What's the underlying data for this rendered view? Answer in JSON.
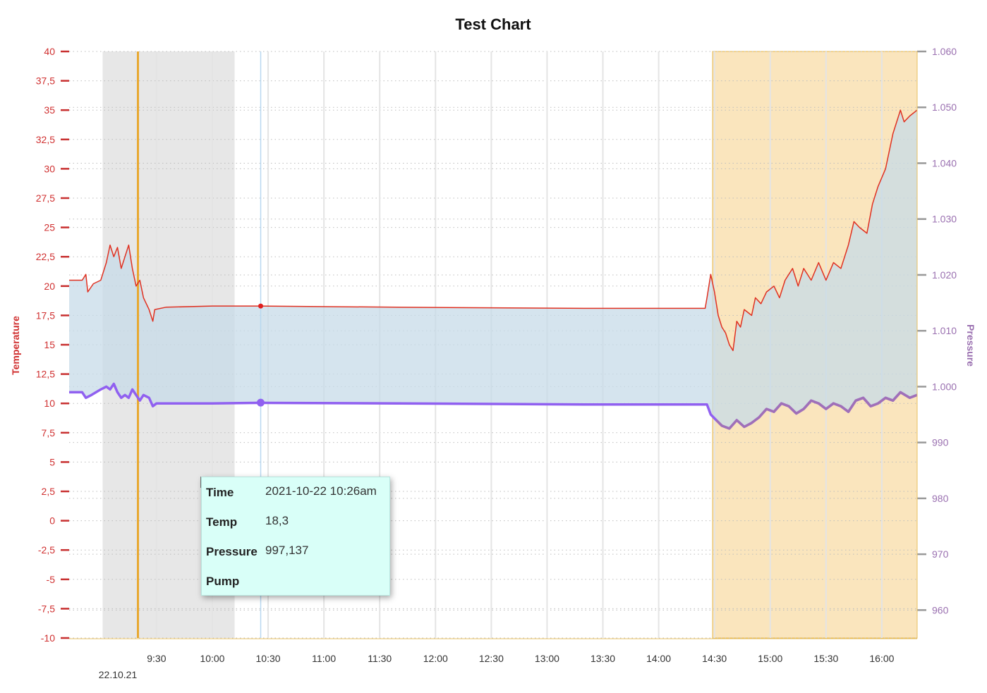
{
  "chart_data": {
    "type": "line",
    "title": "Test Chart",
    "left_axis": {
      "label": "Temperature",
      "color": "#d03030",
      "min": -10,
      "max": 40,
      "ticks": [
        "40",
        "37,5",
        "35",
        "32,5",
        "30",
        "27,5",
        "25",
        "22,5",
        "20",
        "17,5",
        "15",
        "12,5",
        "10",
        "7,5",
        "5",
        "2,5",
        "0",
        "-2,5",
        "-5",
        "-7,5",
        "-10"
      ]
    },
    "right_axis": {
      "label": "Pressure",
      "color": "#9a70b0",
      "min": 955,
      "max": 1060,
      "ticks": [
        "1.060",
        "1.050",
        "1.040",
        "1.030",
        "1.020",
        "1.010",
        "1.000",
        "990",
        "980",
        "970",
        "960"
      ]
    },
    "x_axis": {
      "ticks": [
        "9:30",
        "10:00",
        "10:30",
        "11:00",
        "11:30",
        "12:00",
        "12:30",
        "13:00",
        "13:30",
        "14:00",
        "14:30",
        "15:00",
        "15:30",
        "16:00"
      ],
      "date_label": "22.10.21"
    },
    "bands": [
      {
        "name": "grey-band",
        "from_min": 541,
        "to_min": 612,
        "color": "#d4d4d4"
      },
      {
        "name": "orange-band",
        "from_min": 869,
        "to_min": 979,
        "color": "#f5cf86"
      }
    ],
    "series": [
      {
        "name": "Temp",
        "axis": "left",
        "color": "#e03020",
        "points": [
          [
            523,
            20.5
          ],
          [
            530,
            20.5
          ],
          [
            532,
            21
          ],
          [
            533,
            19.5
          ],
          [
            536,
            20.2
          ],
          [
            540,
            20.5
          ],
          [
            543,
            22
          ],
          [
            545,
            23.5
          ],
          [
            547,
            22.5
          ],
          [
            549,
            23.3
          ],
          [
            551,
            21.5
          ],
          [
            553,
            22.5
          ],
          [
            555,
            23.5
          ],
          [
            557,
            21.5
          ],
          [
            559,
            20
          ],
          [
            561,
            20.5
          ],
          [
            563,
            19
          ],
          [
            566,
            18
          ],
          [
            568,
            17
          ],
          [
            569,
            18
          ],
          [
            575,
            18.2
          ],
          [
            600,
            18.3
          ],
          [
            626,
            18.3
          ],
          [
            700,
            18.2
          ],
          [
            800,
            18.1
          ],
          [
            865,
            18.1
          ],
          [
            866,
            19
          ],
          [
            868,
            21
          ],
          [
            870,
            19.5
          ],
          [
            872,
            17.5
          ],
          [
            874,
            16.5
          ],
          [
            876,
            16
          ],
          [
            878,
            15
          ],
          [
            880,
            14.5
          ],
          [
            882,
            17
          ],
          [
            884,
            16.5
          ],
          [
            886,
            18
          ],
          [
            890,
            17.5
          ],
          [
            892,
            19
          ],
          [
            895,
            18.5
          ],
          [
            898,
            19.5
          ],
          [
            902,
            20
          ],
          [
            905,
            19
          ],
          [
            908,
            20.5
          ],
          [
            912,
            21.5
          ],
          [
            915,
            20
          ],
          [
            918,
            21.5
          ],
          [
            922,
            20.5
          ],
          [
            926,
            22
          ],
          [
            930,
            20.5
          ],
          [
            934,
            22
          ],
          [
            938,
            21.5
          ],
          [
            942,
            23.5
          ],
          [
            945,
            25.5
          ],
          [
            948,
            25
          ],
          [
            952,
            24.5
          ],
          [
            955,
            27
          ],
          [
            958,
            28.5
          ],
          [
            962,
            30
          ],
          [
            966,
            33
          ],
          [
            970,
            35
          ],
          [
            972,
            34
          ],
          [
            975,
            34.5
          ],
          [
            979,
            35
          ]
        ]
      },
      {
        "name": "Pressure",
        "axis": "right",
        "color": "#9060f0",
        "points": [
          [
            523,
            999
          ],
          [
            530,
            999
          ],
          [
            532,
            998
          ],
          [
            535,
            998.5
          ],
          [
            540,
            999.5
          ],
          [
            543,
            1000
          ],
          [
            545,
            999.5
          ],
          [
            547,
            1000.5
          ],
          [
            549,
            999
          ],
          [
            551,
            998
          ],
          [
            553,
            998.5
          ],
          [
            555,
            998
          ],
          [
            557,
            999.5
          ],
          [
            559,
            998.5
          ],
          [
            561,
            997.5
          ],
          [
            563,
            998.5
          ],
          [
            566,
            998
          ],
          [
            568,
            996.5
          ],
          [
            570,
            997
          ],
          [
            600,
            997
          ],
          [
            626,
            997.1
          ],
          [
            700,
            997
          ],
          [
            800,
            996.8
          ],
          [
            866,
            996.8
          ],
          [
            868,
            995
          ],
          [
            871,
            994
          ],
          [
            874,
            993
          ],
          [
            878,
            992.5
          ],
          [
            882,
            994
          ],
          [
            886,
            992.8
          ],
          [
            890,
            993.5
          ],
          [
            894,
            994.5
          ],
          [
            898,
            996
          ],
          [
            902,
            995.5
          ],
          [
            906,
            997
          ],
          [
            910,
            996.5
          ],
          [
            914,
            995.2
          ],
          [
            918,
            996
          ],
          [
            922,
            997.5
          ],
          [
            926,
            997
          ],
          [
            930,
            996
          ],
          [
            934,
            997
          ],
          [
            938,
            996.5
          ],
          [
            942,
            995.5
          ],
          [
            946,
            997.5
          ],
          [
            950,
            998
          ],
          [
            954,
            996.5
          ],
          [
            958,
            997
          ],
          [
            962,
            998
          ],
          [
            966,
            997.5
          ],
          [
            970,
            999
          ],
          [
            975,
            998
          ],
          [
            979,
            998.5
          ]
        ]
      }
    ],
    "markers": [
      {
        "name": "temp-marker",
        "x_min": 626,
        "value": 18.3,
        "axis": "left"
      },
      {
        "name": "pressure-marker",
        "x_min": 626,
        "value": 997.137,
        "axis": "right"
      }
    ],
    "vlines": [
      {
        "name": "cursor-line",
        "x_min": 626,
        "color": "#b8d8f0"
      },
      {
        "name": "orange-line",
        "x_min": 560,
        "color": "#e8a830"
      }
    ]
  },
  "tooltip": {
    "rows": [
      {
        "key": "Time",
        "value": "2021-10-22 10:26am"
      },
      {
        "key": "Temp",
        "value": "18,3"
      },
      {
        "key": "Pressure",
        "value": "997,137"
      },
      {
        "key": "Pump",
        "value": ""
      }
    ]
  },
  "colors": {
    "area_fill": "#c7dbe8",
    "grid_dotted": "#bdbdbd",
    "grid_vertical": "#e4e4e4"
  }
}
